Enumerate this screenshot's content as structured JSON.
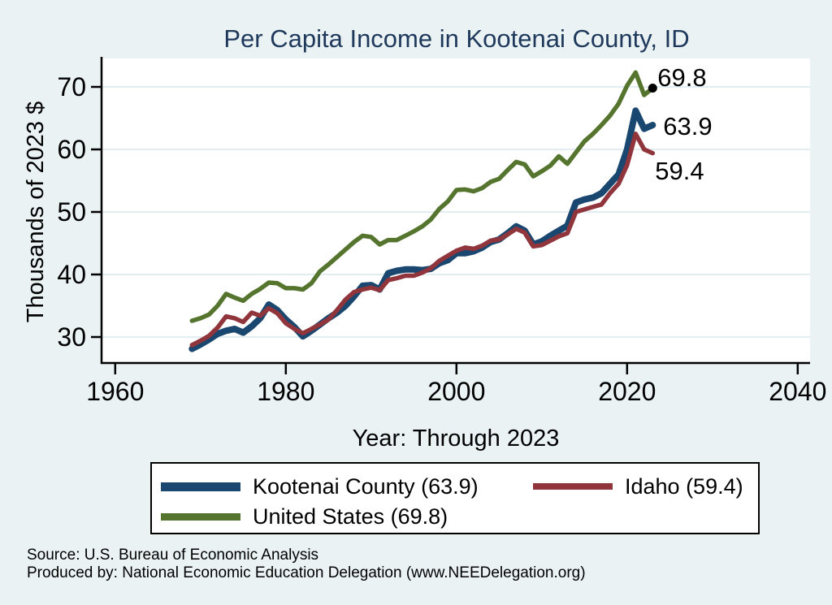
{
  "title": "Per Capita Income in Kootenai County, ID",
  "chart_data": {
    "type": "line",
    "title": "Per Capita Income in Kootenai County, ID",
    "xlabel": "Year: Through 2023",
    "ylabel": "Thousands of 2023 $",
    "x_ticks": [
      1960,
      1980,
      2000,
      2020,
      2040
    ],
    "y_ticks": [
      30,
      40,
      50,
      60,
      70
    ],
    "xlim": [
      1958.4,
      2041.4
    ],
    "ylim": [
      25.8,
      74.5
    ],
    "grid": "horizontal-only",
    "legend_position": "bottom",
    "start_year": 1969,
    "end_year": 2023,
    "series": [
      {
        "name": "Kootenai County",
        "legend_label": "Kootenai County (63.9)",
        "end_label": "63.9",
        "end_value": 63.9,
        "color": "#1a476f",
        "line_width": 8,
        "end_marker": false,
        "values": [
          28.1,
          28.8,
          29.6,
          30.5,
          31.0,
          31.3,
          30.7,
          31.7,
          33.0,
          35.2,
          34.3,
          32.8,
          31.6,
          30.1,
          31.0,
          32.0,
          33.0,
          33.9,
          35.0,
          36.5,
          38.2,
          38.3,
          37.6,
          40.2,
          40.6,
          40.8,
          40.8,
          40.7,
          40.9,
          41.8,
          42.3,
          43.4,
          43.4,
          43.7,
          44.3,
          45.2,
          45.6,
          46.6,
          47.7,
          47.0,
          44.8,
          45.3,
          46.2,
          47.0,
          47.8,
          51.5,
          52.0,
          52.3,
          53.0,
          54.5,
          56.0,
          60.0,
          66.2,
          63.3,
          63.9
        ]
      },
      {
        "name": "Idaho",
        "legend_label": "Idaho (59.4)",
        "end_label": "59.4",
        "end_value": 59.4,
        "color": "#90353b",
        "line_width": 5.5,
        "end_marker": false,
        "values": [
          28.7,
          29.4,
          30.2,
          31.5,
          33.3,
          33.0,
          32.4,
          33.9,
          33.4,
          34.6,
          33.8,
          32.2,
          31.3,
          30.6,
          31.3,
          32.0,
          32.8,
          34.3,
          36.0,
          37.2,
          37.6,
          37.9,
          37.5,
          39.1,
          39.4,
          39.8,
          39.8,
          40.3,
          41.0,
          42.2,
          43.0,
          43.8,
          44.3,
          44.1,
          44.6,
          45.4,
          45.6,
          46.4,
          47.3,
          46.7,
          44.5,
          44.7,
          45.4,
          46.1,
          46.6,
          50.0,
          50.4,
          50.8,
          51.2,
          53.0,
          54.5,
          57.5,
          62.5,
          60.0,
          59.4
        ]
      },
      {
        "name": "United States",
        "legend_label": "United States (69.8)",
        "end_label": "69.8",
        "end_value": 69.8,
        "color": "#55752f",
        "line_width": 5.5,
        "end_marker": true,
        "values": [
          32.6,
          33.0,
          33.6,
          35.0,
          36.9,
          36.3,
          35.8,
          36.9,
          37.7,
          38.7,
          38.6,
          37.8,
          37.8,
          37.6,
          38.6,
          40.5,
          41.6,
          42.8,
          44.0,
          45.2,
          46.2,
          46.0,
          44.8,
          45.5,
          45.5,
          46.2,
          46.9,
          47.7,
          48.8,
          50.5,
          51.7,
          53.5,
          53.6,
          53.3,
          53.8,
          54.8,
          55.3,
          56.7,
          58.0,
          57.6,
          55.7,
          56.5,
          57.4,
          58.9,
          57.7,
          59.5,
          61.3,
          62.5,
          63.9,
          65.4,
          67.3,
          70.2,
          72.3,
          68.7,
          69.8
        ]
      }
    ]
  },
  "legend": {
    "items": [
      {
        "label": "Kootenai County (63.9)",
        "color": "#1a476f",
        "thickness": 11
      },
      {
        "label": "Idaho (59.4)",
        "color": "#90353b",
        "thickness": 8
      },
      {
        "label": "United States (69.8)",
        "color": "#55752f",
        "thickness": 9
      }
    ]
  },
  "notes": {
    "source": "Source: U.S. Bureau of Economic Analysis",
    "produced_by": "Produced by: National Economic Education Delegation (www.NEEDelegation.org)"
  },
  "colors": {
    "background": "#eaf2f3",
    "plot_background": "#ffffff",
    "gridline": "#e2edf1",
    "axis": "#000000",
    "title": "#1e395b",
    "kootenai": "#1a476f",
    "idaho": "#90353b",
    "united_states": "#55752f",
    "end_marker": "#000000"
  }
}
